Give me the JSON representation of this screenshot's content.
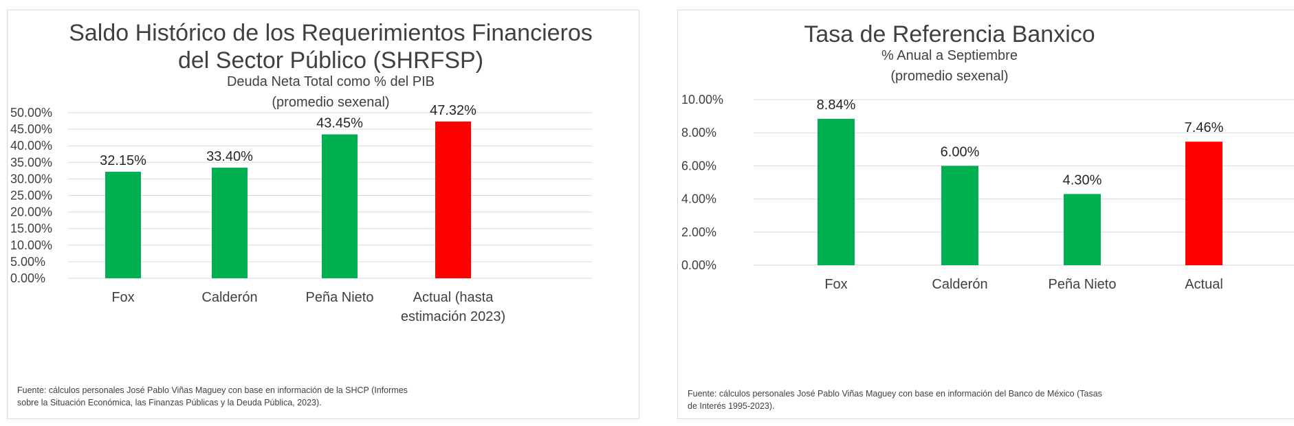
{
  "colors": {
    "bar_default": "#00b050",
    "bar_highlight": "#ff0000",
    "gridline": "#d9d9d9",
    "text": "#404040"
  },
  "chart_data": [
    {
      "type": "bar",
      "title_lines": [
        "Saldo Histórico de los Requerimientos Financieros",
        "del Sector Público (SHRFSP)"
      ],
      "subtitle_lines": [
        "Deuda Neta Total como % del PIB",
        "(promedio sexenal)"
      ],
      "categories": [
        [
          "Fox"
        ],
        [
          "Calderón"
        ],
        [
          "Peña Nieto"
        ],
        [
          "Actual (hasta",
          "estimación 2023)"
        ]
      ],
      "values": [
        32.15,
        33.4,
        43.45,
        47.32
      ],
      "value_labels": [
        "32.15%",
        "33.40%",
        "43.45%",
        "47.32%"
      ],
      "bar_colors": [
        "#00b050",
        "#00b050",
        "#00b050",
        "#ff0000"
      ],
      "ylim": [
        0,
        50
      ],
      "ytick_values": [
        0,
        5,
        10,
        15,
        20,
        25,
        30,
        35,
        40,
        45,
        50
      ],
      "ytick_labels": [
        "0.00%",
        "5.00%",
        "10.00%",
        "15.00%",
        "20.00%",
        "25.00%",
        "30.00%",
        "35.00%",
        "40.00%",
        "45.00%",
        "50.00%"
      ],
      "grid": true,
      "xlabel": "",
      "ylabel": "",
      "source_lines": [
        "Fuente: cálculos personales José Pablo Viñas Maguey con base en información de la SHCP (Informes",
        "sobre la Situación Económica, las Finanzas Públicas y la Deuda Pública, 2023)."
      ]
    },
    {
      "type": "bar",
      "title_lines": [
        "Tasa de Referencia Banxico"
      ],
      "subtitle_lines": [
        "% Anual a Septiembre",
        "(promedio sexenal)"
      ],
      "categories": [
        [
          "Fox"
        ],
        [
          "Calderón"
        ],
        [
          "Peña Nieto"
        ],
        [
          "Actual"
        ]
      ],
      "values": [
        8.84,
        6.0,
        4.3,
        7.46
      ],
      "value_labels": [
        "8.84%",
        "6.00%",
        "4.30%",
        "7.46%"
      ],
      "bar_colors": [
        "#00b050",
        "#00b050",
        "#00b050",
        "#ff0000"
      ],
      "ylim": [
        0,
        10
      ],
      "ytick_values": [
        0,
        2,
        4,
        6,
        8,
        10
      ],
      "ytick_labels": [
        "0.00%",
        "2.00%",
        "4.00%",
        "6.00%",
        "8.00%",
        "10.00%"
      ],
      "grid": true,
      "xlabel": "",
      "ylabel": "",
      "source_lines": [
        "Fuente: cálculos personales José Pablo Viñas Maguey con base en información del Banco de México (Tasas",
        "de Interés 1995-2023)."
      ]
    }
  ]
}
